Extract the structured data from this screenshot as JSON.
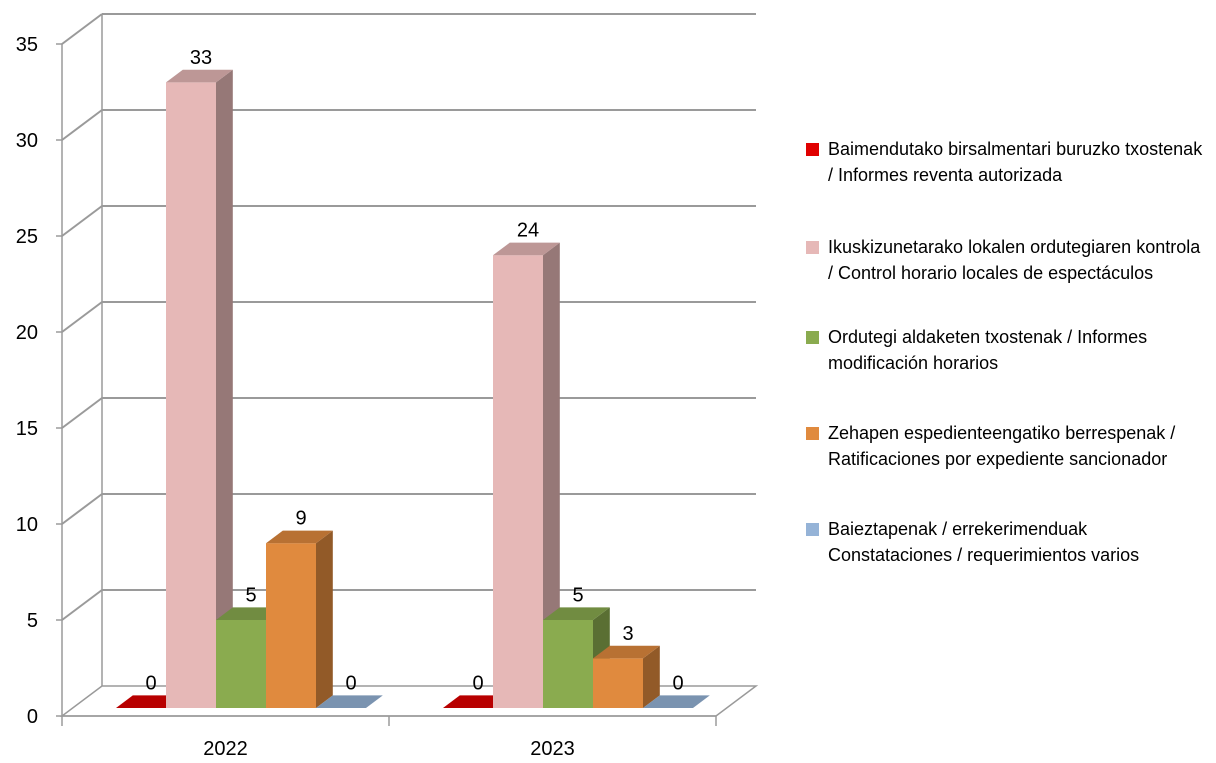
{
  "chart_data": {
    "type": "bar",
    "categories": [
      "2022",
      "2023"
    ],
    "series": [
      {
        "name": "Baimendutako birsalmentari buruzko txostenak / Informes  reventa autorizada",
        "values": [
          0,
          0
        ],
        "color": "#e00000"
      },
      {
        "name": "Ikuskizunetarako lokalen ordutegiaren kontrola / Control horario locales de espectáculos",
        "values": [
          33,
          24
        ],
        "color": "#e6b8b7"
      },
      {
        "name": "Ordutegi aldaketen txostenak / Informes modificación horarios",
        "values": [
          5,
          5
        ],
        "color": "#8aab4f"
      },
      {
        "name": "Zehapen espedienteengatiko berrespenak / Ratificaciones por expediente sancionador",
        "values": [
          9,
          3
        ],
        "color": "#e08a3e"
      },
      {
        "name": "Baieztapenak / errekerimenduak Constataciones / requerimientos varios",
        "values": [
          0,
          0
        ],
        "color": "#95b3d7"
      }
    ],
    "yticks": [
      "0",
      "5",
      "10",
      "15",
      "20",
      "25",
      "30",
      "35"
    ],
    "ylim": [
      0,
      35
    ],
    "grid": true,
    "legend_position": "right",
    "three_d": true
  }
}
